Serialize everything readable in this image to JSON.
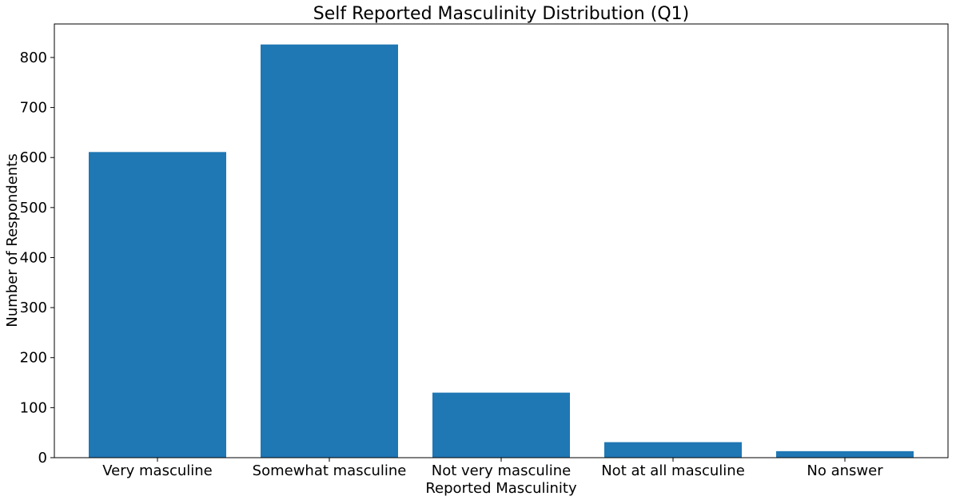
{
  "chart_data": {
    "type": "bar",
    "title": "Self Reported Masculinity Distribution (Q1)",
    "xlabel": "Reported Masculinity",
    "ylabel": "Number of Respondents",
    "categories": [
      "Very masculine",
      "Somewhat masculine",
      "Not very masculine",
      "Not at all masculine",
      "No answer"
    ],
    "values": [
      611,
      826,
      130,
      31,
      13
    ],
    "ylim": [
      0,
      867
    ],
    "yticks": [
      0,
      100,
      200,
      300,
      400,
      500,
      600,
      700,
      800
    ],
    "bar_color": "#1f77b4",
    "grid": false,
    "legend": "none"
  }
}
